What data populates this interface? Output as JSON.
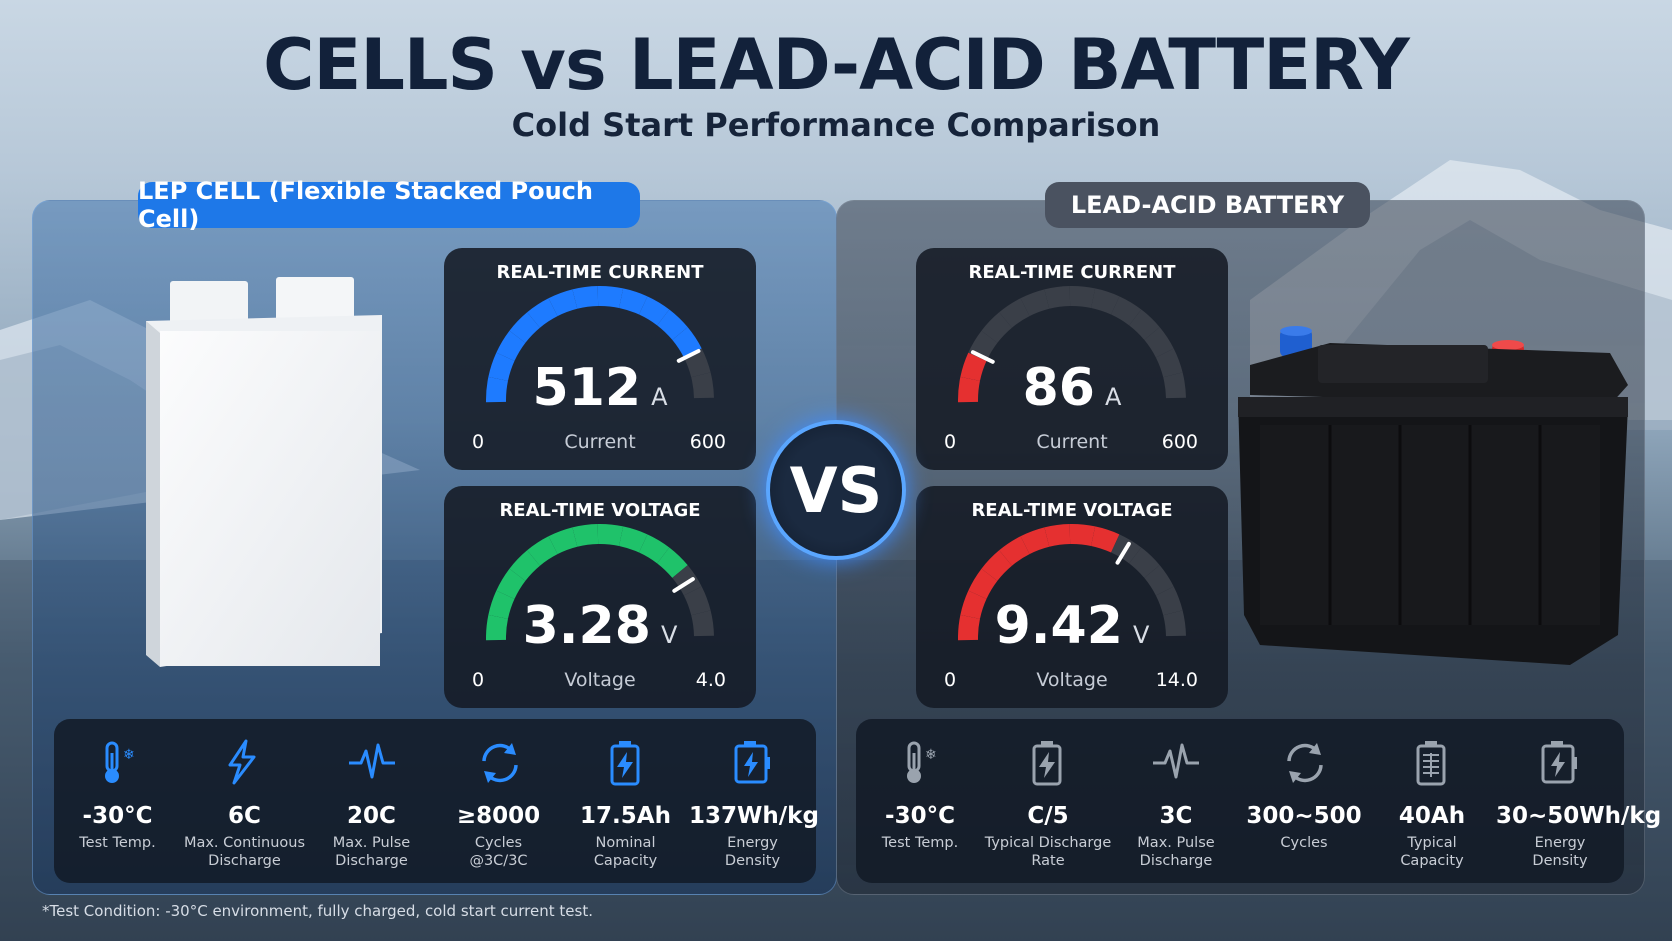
{
  "header": {
    "title": "CELLS vs LEAD-ACID BATTERY",
    "subtitle": "Cold Start Performance Comparison"
  },
  "left": {
    "tag": "LEP CELL (Flexible Stacked Pouch Cell)",
    "current": {
      "title": "REAL-TIME CURRENT",
      "value": "512",
      "unit": "A",
      "label": "Current",
      "min": "0",
      "max": "600",
      "level": 0.853,
      "color": "#1e7bff"
    },
    "voltage": {
      "title": "REAL-TIME VOLTAGE",
      "value": "3.28",
      "unit": "V",
      "label": "Voltage",
      "min": "0",
      "max": "4.0",
      "level": 0.82,
      "color": "#1fc26a"
    },
    "specs": [
      {
        "icon": "thermometer-snow-icon",
        "value": "-30°C",
        "desc1": "Test Temp.",
        "desc2": ""
      },
      {
        "icon": "lightning-icon",
        "value": "6C",
        "desc1": "Max. Continuous",
        "desc2": "Discharge"
      },
      {
        "icon": "pulse-icon",
        "value": "20C",
        "desc1": "Max. Pulse",
        "desc2": "Discharge"
      },
      {
        "icon": "cycle-icon",
        "value": "≥8000",
        "desc1": "Cycles",
        "desc2": "@3C/3C"
      },
      {
        "icon": "battery-charge-icon",
        "value": "17.5Ah",
        "desc1": "Nominal",
        "desc2": "Capacity"
      },
      {
        "icon": "battery-energy-icon",
        "value": "137Wh/kg",
        "desc1": "Energy",
        "desc2": "Density"
      }
    ]
  },
  "vs": "VS",
  "right": {
    "tag": "LEAD-ACID BATTERY",
    "current": {
      "title": "REAL-TIME CURRENT",
      "value": "86",
      "unit": "A",
      "label": "Current",
      "min": "0",
      "max": "600",
      "level": 0.143,
      "color": "#e53030"
    },
    "voltage": {
      "title": "REAL-TIME VOLTAGE",
      "value": "9.42",
      "unit": "V",
      "label": "Voltage",
      "min": "0",
      "max": "14.0",
      "level": 0.673,
      "color": "#e53030"
    },
    "specs": [
      {
        "icon": "thermometer-snow-icon",
        "value": "-30°C",
        "desc1": "Test Temp.",
        "desc2": ""
      },
      {
        "icon": "battery-charge-icon",
        "value": "C/5",
        "desc1": "Typical Discharge",
        "desc2": "Rate"
      },
      {
        "icon": "pulse-icon",
        "value": "3C",
        "desc1": "Max. Pulse",
        "desc2": "Discharge"
      },
      {
        "icon": "cycle-icon",
        "value": "300~500",
        "desc1": "Cycles",
        "desc2": ""
      },
      {
        "icon": "battery-grid-icon",
        "value": "40Ah",
        "desc1": "Typical",
        "desc2": "Capacity"
      },
      {
        "icon": "battery-energy-icon",
        "value": "30~50Wh/kg",
        "desc1": "Energy",
        "desc2": "Density"
      }
    ]
  },
  "footnote": "*Test Condition: -30°C environment, fully charged, cold start current test."
}
